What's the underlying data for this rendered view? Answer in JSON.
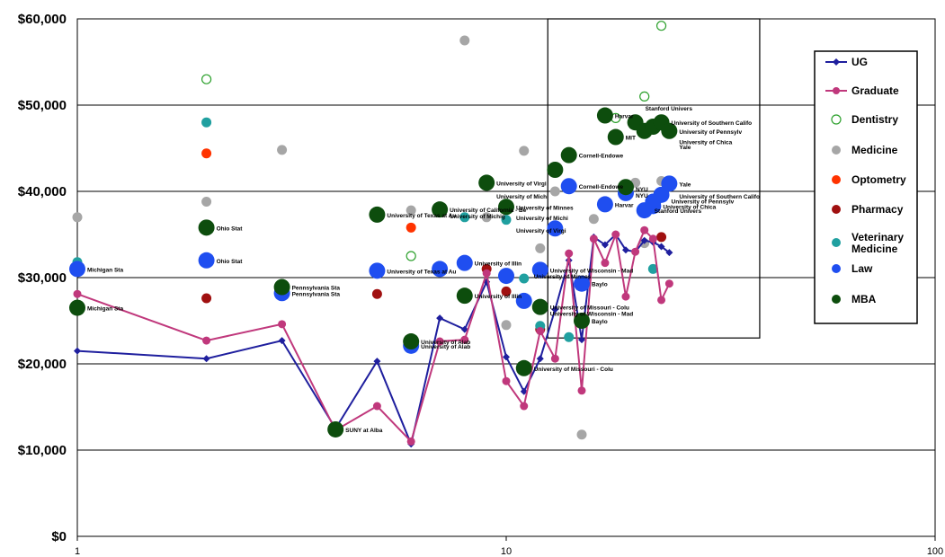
{
  "chart_data": {
    "type": "scatter",
    "title": "",
    "xlabel": "",
    "ylabel": "",
    "x_scale": "log",
    "xlim": [
      1,
      100
    ],
    "ylim": [
      0,
      60000
    ],
    "x_ticks": [
      {
        "value": 1,
        "label": "1"
      },
      {
        "value": 10,
        "label": "10"
      },
      {
        "value": 100,
        "label": "100"
      }
    ],
    "y_ticks": [
      {
        "value": 0,
        "label": "$0"
      },
      {
        "value": 10000,
        "label": "$10,000"
      },
      {
        "value": 20000,
        "label": "$20,000"
      },
      {
        "value": 30000,
        "label": "$30,000"
      },
      {
        "value": 40000,
        "label": "$40,000"
      },
      {
        "value": 50000,
        "label": "$50,000"
      },
      {
        "value": 60000,
        "label": "$60,000"
      }
    ],
    "grid": "horizontal",
    "legend_position": "right",
    "highlight_box": {
      "x": [
        12.5,
        39
      ],
      "y": [
        23000,
        60000
      ]
    },
    "series": [
      {
        "name": "UG",
        "style": "line-diamond",
        "color": "#1f1f9e",
        "points": [
          [
            1,
            21500
          ],
          [
            2,
            20600
          ],
          [
            3,
            22700
          ],
          [
            4,
            12500
          ],
          [
            5,
            20300
          ],
          [
            6,
            10700
          ],
          [
            7,
            25300
          ],
          [
            8,
            24000
          ],
          [
            9,
            29500
          ],
          [
            10,
            20800
          ],
          [
            11,
            16800
          ],
          [
            12,
            20600
          ],
          [
            13,
            26300
          ],
          [
            14,
            32000
          ],
          [
            15,
            22800
          ],
          [
            16,
            34700
          ],
          [
            17,
            33800
          ],
          [
            18,
            35000
          ],
          [
            19,
            33200
          ],
          [
            20,
            33000
          ],
          [
            21,
            34300
          ],
          [
            22,
            34100
          ],
          [
            23,
            33600
          ],
          [
            24,
            32900
          ]
        ]
      },
      {
        "name": "Graduate",
        "style": "line-circle",
        "color": "#c0387c",
        "points": [
          [
            1,
            28100
          ],
          [
            2,
            22700
          ],
          [
            3,
            24600
          ],
          [
            4,
            12300
          ],
          [
            5,
            15100
          ],
          [
            6,
            11000
          ],
          [
            7,
            22600
          ],
          [
            8,
            22800
          ],
          [
            9,
            30500
          ],
          [
            10,
            18000
          ],
          [
            11,
            15100
          ],
          [
            12,
            23800
          ],
          [
            13,
            20600
          ],
          [
            14,
            32800
          ],
          [
            15,
            16900
          ],
          [
            16,
            34500
          ],
          [
            17,
            31700
          ],
          [
            18,
            35000
          ],
          [
            19,
            27800
          ],
          [
            20,
            33000
          ],
          [
            21,
            35500
          ],
          [
            22,
            34500
          ],
          [
            23,
            27400
          ],
          [
            24,
            29300
          ]
        ]
      },
      {
        "name": "Dentistry",
        "style": "open-circle",
        "color": "#2ca02c",
        "points": [
          [
            2,
            53000
          ],
          [
            6,
            32500
          ],
          [
            18,
            48500
          ],
          [
            21,
            51000
          ],
          [
            23,
            59200
          ]
        ]
      },
      {
        "name": "Medicine",
        "style": "circle",
        "color": "#a6a6a6",
        "points": [
          [
            1,
            37000
          ],
          [
            2,
            38800
          ],
          [
            3,
            44800
          ],
          [
            6,
            37800
          ],
          [
            8,
            57500
          ],
          [
            9,
            37000
          ],
          [
            10,
            24500
          ],
          [
            11,
            44700
          ],
          [
            12,
            33400
          ],
          [
            13,
            40000
          ],
          [
            15,
            11800
          ],
          [
            16,
            36800
          ],
          [
            20,
            41000
          ],
          [
            21,
            34000
          ],
          [
            23,
            41200
          ]
        ]
      },
      {
        "name": "Optometry",
        "style": "circle",
        "color": "#ff3300",
        "points": [
          [
            2,
            44400
          ],
          [
            6,
            35800
          ],
          [
            7,
            30800
          ]
        ]
      },
      {
        "name": "Pharmacy",
        "style": "circle",
        "color": "#a01010",
        "points": [
          [
            2,
            27600
          ],
          [
            5,
            28100
          ],
          [
            9,
            31000
          ],
          [
            10,
            28400
          ],
          [
            12,
            24000
          ],
          [
            23,
            34700
          ]
        ]
      },
      {
        "name": "Veterinary Medicine",
        "style": "circle",
        "color": "#20a0a0",
        "points": [
          [
            1,
            31800
          ],
          [
            2,
            48000
          ],
          [
            8,
            37000
          ],
          [
            10,
            36700
          ],
          [
            11,
            29900
          ],
          [
            12,
            24400
          ],
          [
            14,
            23100
          ],
          [
            22,
            31000
          ]
        ]
      },
      {
        "name": "Law",
        "style": "big-circle",
        "color": "#1f4ef0",
        "points": [
          [
            1,
            31000
          ],
          [
            2,
            32000
          ],
          [
            3,
            28200
          ],
          [
            5,
            30800
          ],
          [
            6,
            22100
          ],
          [
            7,
            31000
          ],
          [
            8,
            31700
          ],
          [
            10,
            30200
          ],
          [
            11,
            27300
          ],
          [
            12,
            30900
          ],
          [
            13,
            35700
          ],
          [
            14,
            40600
          ],
          [
            15,
            29300
          ],
          [
            17,
            38500
          ],
          [
            19,
            39800
          ],
          [
            21,
            37800
          ],
          [
            22,
            38300
          ],
          [
            23,
            39600
          ],
          [
            24,
            40900
          ],
          [
            22,
            38800
          ]
        ]
      },
      {
        "name": "MBA",
        "style": "big-circle",
        "color": "#0d4d0d",
        "points": [
          [
            1,
            26500
          ],
          [
            2,
            35800
          ],
          [
            3,
            28900
          ],
          [
            4,
            12400
          ],
          [
            5,
            37300
          ],
          [
            6,
            22600
          ],
          [
            7,
            37900
          ],
          [
            8,
            27900
          ],
          [
            9,
            41000
          ],
          [
            10,
            38200
          ],
          [
            11,
            19500
          ],
          [
            12,
            26600
          ],
          [
            13,
            42500
          ],
          [
            14,
            44200
          ],
          [
            15,
            25000
          ],
          [
            17,
            48800
          ],
          [
            18,
            46300
          ],
          [
            20,
            48000
          ],
          [
            21,
            47000
          ],
          [
            22,
            47500
          ],
          [
            23,
            48000
          ],
          [
            24,
            47000
          ],
          [
            19,
            40500
          ]
        ]
      }
    ],
    "point_labels": [
      {
        "text": "Michigan Sta",
        "x": 1,
        "y": 31000
      },
      {
        "text": "Michigan Sta",
        "x": 1,
        "y": 26500
      },
      {
        "text": "Ohio Stat",
        "x": 2,
        "y": 35800
      },
      {
        "text": "Ohio Stat",
        "x": 2,
        "y": 32000
      },
      {
        "text": "Pennsylvania Sta",
        "x": 3,
        "y": 28900
      },
      {
        "text": "Pennsylvania Sta",
        "x": 3,
        "y": 28200
      },
      {
        "text": "SUNY at Alba",
        "x": 4,
        "y": 12400
      },
      {
        "text": "University of Texas at Au",
        "x": 5,
        "y": 37300
      },
      {
        "text": "University of Texas at Au",
        "x": 5,
        "y": 30800
      },
      {
        "text": "University of Alab",
        "x": 6,
        "y": 22600
      },
      {
        "text": "University of Alab",
        "x": 6,
        "y": 22100
      },
      {
        "text": "University of California - Be",
        "x": 7,
        "y": 37900
      },
      {
        "text": "University of Michig",
        "x": 7,
        "y": 37200
      },
      {
        "text": "University of Illin",
        "x": 8,
        "y": 31700
      },
      {
        "text": "University of Illin",
        "x": 8,
        "y": 27900
      },
      {
        "text": "University of Virgi",
        "x": 9,
        "y": 41000
      },
      {
        "text": "University of Michi",
        "x": 9,
        "y": 39500
      },
      {
        "text": "University of Minnes",
        "x": 10,
        "y": 38200
      },
      {
        "text": "University of Michi",
        "x": 10,
        "y": 37000
      },
      {
        "text": "University of Virgi",
        "x": 10,
        "y": 35500
      },
      {
        "text": "University of Minnes",
        "x": 11,
        "y": 30200
      },
      {
        "text": "University of Wisconsin - Mad",
        "x": 12,
        "y": 30900
      },
      {
        "text": "University of Missouri - Colu",
        "x": 12,
        "y": 26600
      },
      {
        "text": "University of Wisconsin - Mad",
        "x": 12,
        "y": 25900
      },
      {
        "text": "University of Missouri - Colu",
        "x": 11,
        "y": 19500
      },
      {
        "text": "Cornell-Endowe",
        "x": 14,
        "y": 44200
      },
      {
        "text": "Cornell-Endowe",
        "x": 14,
        "y": 40600
      },
      {
        "text": "Baylo",
        "x": 15,
        "y": 29300
      },
      {
        "text": "Baylo",
        "x": 15,
        "y": 25000
      },
      {
        "text": "Harvar",
        "x": 17,
        "y": 48800
      },
      {
        "text": "Harvar",
        "x": 17,
        "y": 38500
      },
      {
        "text": "MIT",
        "x": 18,
        "y": 46300
      },
      {
        "text": "Stanford Univers",
        "x": 20,
        "y": 49700
      },
      {
        "text": "NYU",
        "x": 19,
        "y": 40300
      },
      {
        "text": "NYU",
        "x": 19,
        "y": 39600
      },
      {
        "text": "University of Southern Califo",
        "x": 23,
        "y": 48000
      },
      {
        "text": "University of Pennsylv",
        "x": 24,
        "y": 47000
      },
      {
        "text": "University of Chica",
        "x": 24,
        "y": 45800
      },
      {
        "text": "Yale",
        "x": 24,
        "y": 45200
      },
      {
        "text": "Yale",
        "x": 24,
        "y": 40900
      },
      {
        "text": "University of Southern Califo",
        "x": 24,
        "y": 39500
      },
      {
        "text": "University of Pennsylv",
        "x": 23,
        "y": 38900
      },
      {
        "text": "University of Chica",
        "x": 22,
        "y": 38300
      },
      {
        "text": "Stanford Univers",
        "x": 21,
        "y": 37800
      }
    ]
  }
}
